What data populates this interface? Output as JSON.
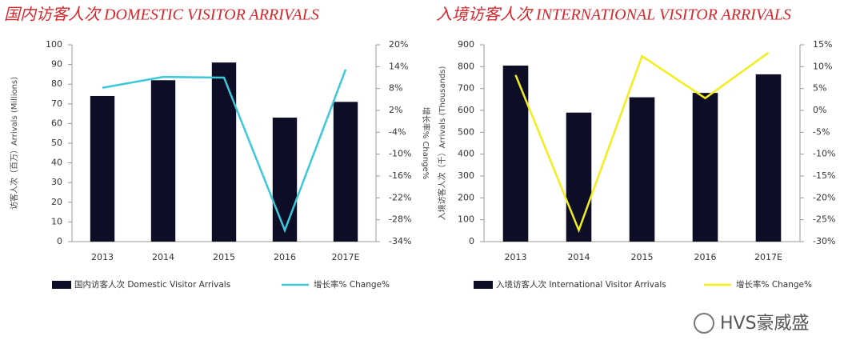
{
  "chart_data": [
    {
      "type": "combo",
      "title": "国内访客人次 DOMESTIC VISITOR ARRIVALS",
      "ylabel": "访客人次（百万）Arrivals (Millions)",
      "y2label": "增长率% Change%",
      "categories": [
        "2013",
        "2014",
        "2015",
        "2016",
        "2017E"
      ],
      "series": [
        {
          "name": "国内访客人次 Domestic Visitor Arrivals",
          "type": "bar",
          "color": "#0d0d26",
          "values": [
            74,
            82,
            91,
            63,
            71
          ]
        },
        {
          "name": "增长率% Change%",
          "type": "line",
          "axis": "y2",
          "color": "#3cc8d8",
          "values": [
            8.2,
            11.2,
            11,
            -30.9,
            13.2
          ]
        }
      ],
      "ylim": [
        0,
        100
      ],
      "yticks": [
        0,
        10,
        20,
        30,
        40,
        50,
        60,
        70,
        80,
        90,
        100
      ],
      "y2lim": [
        -34,
        20
      ],
      "y2ticks": [
        {
          "value": -34,
          "label": "-34%"
        },
        {
          "value": -28,
          "label": "-28%"
        },
        {
          "value": -22,
          "label": "-22%"
        },
        {
          "value": -16,
          "label": "-16%"
        },
        {
          "value": -10,
          "label": "-10%"
        },
        {
          "value": -4,
          "label": "-4%"
        },
        {
          "value": 2,
          "label": "2%"
        },
        {
          "value": 8,
          "label": "8%"
        },
        {
          "value": 14,
          "label": "14%"
        },
        {
          "value": 20,
          "label": "20%"
        }
      ],
      "legend": "bottom"
    },
    {
      "type": "combo",
      "title": "入境访客人次 INTERNATIONAL VISITOR ARRIVALS",
      "ylabel": "入境访客人次（千）Arrivals (Thousands)",
      "categories": [
        "2013",
        "2014",
        "2015",
        "2016",
        "2017E"
      ],
      "series": [
        {
          "name": "入境访客人次 International Visitor Arrivals",
          "type": "bar",
          "color": "#0d0d26",
          "values": [
            805,
            590,
            660,
            680,
            765
          ]
        },
        {
          "name": "增长率% Change%",
          "type": "line",
          "axis": "y2",
          "color": "#f2ee1c",
          "values": [
            8.1,
            -27.4,
            12.4,
            2.8,
            13.2
          ]
        }
      ],
      "ylim": [
        0,
        900
      ],
      "yticks": [
        0,
        100,
        200,
        300,
        400,
        500,
        600,
        700,
        800,
        900
      ],
      "y2lim": [
        -30,
        15
      ],
      "y2ticks": [
        {
          "value": -30,
          "label": "-30%"
        },
        {
          "value": -25,
          "label": "-25%"
        },
        {
          "value": -20,
          "label": "-20%"
        },
        {
          "value": -15,
          "label": "-15%"
        },
        {
          "value": -10,
          "label": "-10%"
        },
        {
          "value": -5,
          "label": "-5%"
        },
        {
          "value": 0,
          "label": "0%"
        },
        {
          "value": 5,
          "label": "5%"
        },
        {
          "value": 10,
          "label": "10%"
        },
        {
          "value": 15,
          "label": "15%"
        }
      ],
      "legend": "bottom"
    }
  ],
  "watermark": "HVS豪威盛"
}
